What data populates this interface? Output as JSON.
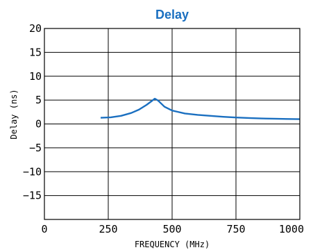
{
  "chart_data": {
    "type": "line",
    "title": "Delay",
    "title_color": "#1a6fc0",
    "xlabel": "FREQUENCY (MHz)",
    "ylabel": "Delay (ns)",
    "xlim": [
      0,
      1000
    ],
    "ylim": [
      -20,
      20
    ],
    "x_ticks": [
      0,
      250,
      500,
      750,
      1000
    ],
    "y_ticks": [
      20,
      15,
      10,
      5,
      0,
      -5,
      -10,
      -15
    ],
    "grid": true,
    "series": [
      {
        "color": "#1a6fc0",
        "x": [
          220,
          260,
          300,
          340,
          370,
          400,
          420,
          432,
          445,
          470,
          500,
          550,
          600,
          650,
          700,
          750,
          800,
          850,
          900,
          950,
          1000
        ],
        "y": [
          1.3,
          1.4,
          1.7,
          2.3,
          3.0,
          4.0,
          4.8,
          5.3,
          4.9,
          3.6,
          2.8,
          2.2,
          1.9,
          1.7,
          1.5,
          1.35,
          1.25,
          1.15,
          1.1,
          1.05,
          1.0
        ]
      }
    ]
  }
}
